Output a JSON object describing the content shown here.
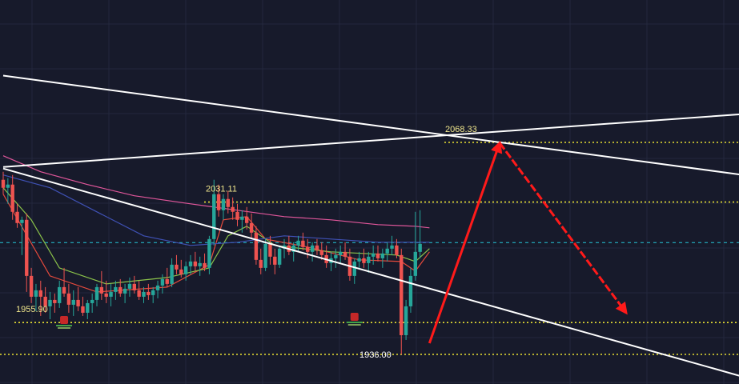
{
  "chart_data": {
    "type": "candlestick",
    "grid": true,
    "background": "#171a2b",
    "ylim": [
      1926,
      2110
    ],
    "colors": {
      "up": "#26a69a",
      "down": "#ef5350",
      "level_line": "#e8e032",
      "level_text": "#f0e68c",
      "trendline": "#ffffff",
      "projection_arrow": "#ff1a1a",
      "ma_fast": "#e64a3c",
      "ma_mid": "#8bc34a",
      "ma_slow": "#3f51b5",
      "ma_long": "#e0569a",
      "current_price_line": "#26c6da"
    },
    "levels": [
      {
        "label": "2068.33",
        "value": 2068.33
      },
      {
        "label": "2031.11",
        "value": 2031.11
      },
      {
        "label": "1955.90",
        "value": 1955.9
      },
      {
        "label": "1936.00",
        "value": 1936.0
      }
    ],
    "current_price": 2005.8,
    "candles": [
      [
        2045,
        2050,
        2036,
        2040
      ],
      [
        2040,
        2046,
        2030,
        2042
      ],
      [
        2042,
        2048,
        2020,
        2025
      ],
      [
        2025,
        2030,
        2015,
        2018
      ],
      [
        2018,
        2022,
        1998,
        2020
      ],
      [
        2020,
        2024,
        1975,
        1985
      ],
      [
        1985,
        1990,
        1968,
        1972
      ],
      [
        1972,
        1980,
        1963,
        1976
      ],
      [
        1976,
        1982,
        1960,
        1972
      ],
      [
        1972,
        1978,
        1962,
        1966
      ],
      [
        1966,
        1975,
        1958,
        1970
      ],
      [
        1970,
        1974,
        1962,
        1968
      ],
      [
        1968,
        1982,
        1965,
        1978
      ],
      [
        1978,
        1990,
        1972,
        1974
      ],
      [
        1974,
        1980,
        1962,
        1967
      ],
      [
        1967,
        1976,
        1960,
        1970
      ],
      [
        1970,
        1978,
        1963,
        1966
      ],
      [
        1966,
        1972,
        1960,
        1962
      ],
      [
        1962,
        1970,
        1958,
        1968
      ],
      [
        1968,
        1974,
        1962,
        1970
      ],
      [
        1970,
        1980,
        1966,
        1978
      ],
      [
        1978,
        1988,
        1970,
        1974
      ],
      [
        1974,
        1982,
        1968,
        1972
      ],
      [
        1972,
        1980,
        1966,
        1975
      ],
      [
        1975,
        1982,
        1970,
        1978
      ],
      [
        1978,
        1983,
        1972,
        1974
      ],
      [
        1974,
        1980,
        1968,
        1977
      ],
      [
        1977,
        1984,
        1972,
        1980
      ],
      [
        1980,
        1985,
        1974,
        1976
      ],
      [
        1976,
        1982,
        1970,
        1972
      ],
      [
        1972,
        1978,
        1968,
        1975
      ],
      [
        1975,
        1980,
        1970,
        1973
      ],
      [
        1973,
        1978,
        1968,
        1976
      ],
      [
        1976,
        1982,
        1971,
        1979
      ],
      [
        1979,
        1986,
        1974,
        1983
      ],
      [
        1983,
        1990,
        1978,
        1980
      ],
      [
        1980,
        1996,
        1978,
        1992
      ],
      [
        1992,
        1998,
        1986,
        1989
      ],
      [
        1989,
        1995,
        1984,
        1986
      ],
      [
        1986,
        1994,
        1982,
        1991
      ],
      [
        1991,
        1998,
        1986,
        1994
      ],
      [
        1994,
        2000,
        1988,
        1991
      ],
      [
        1991,
        1997,
        1985,
        1993
      ],
      [
        1993,
        1999,
        1988,
        1990
      ],
      [
        1990,
        2010,
        1986,
        2008
      ],
      [
        2008,
        2045,
        2004,
        2036
      ],
      [
        2036,
        2042,
        2022,
        2026
      ],
      [
        2026,
        2036,
        2020,
        2033
      ],
      [
        2033,
        2038,
        2024,
        2028
      ],
      [
        2028,
        2034,
        2020,
        2025
      ],
      [
        2025,
        2030,
        2016,
        2020
      ],
      [
        2020,
        2026,
        2012,
        2022
      ],
      [
        2022,
        2028,
        2014,
        2018
      ],
      [
        2018,
        2024,
        2008,
        2012
      ],
      [
        2012,
        2016,
        1992,
        1995
      ],
      [
        1995,
        2002,
        1986,
        1990
      ],
      [
        1990,
        2008,
        1988,
        2005
      ],
      [
        2005,
        2010,
        1992,
        1997
      ],
      [
        1997,
        2002,
        1986,
        1992
      ],
      [
        1992,
        2004,
        1990,
        2002
      ],
      [
        2002,
        2008,
        1996,
        2004
      ],
      [
        2004,
        2010,
        1998,
        2000
      ],
      [
        2000,
        2006,
        1994,
        2004
      ],
      [
        2004,
        2010,
        2000,
        2007
      ],
      [
        2007,
        2012,
        2001,
        2003
      ],
      [
        2003,
        2008,
        1996,
        2000
      ],
      [
        2000,
        2006,
        1994,
        2004
      ],
      [
        2004,
        2008,
        1998,
        2001
      ],
      [
        2001,
        2006,
        1995,
        1998
      ],
      [
        1998,
        2004,
        1990,
        1993
      ],
      [
        1993,
        2000,
        1988,
        1996
      ],
      [
        1996,
        2002,
        1990,
        1998
      ],
      [
        1998,
        2004,
        1993,
        2000
      ],
      [
        2000,
        2006,
        1995,
        1997
      ],
      [
        1997,
        2002,
        1982,
        1985
      ],
      [
        1985,
        1996,
        1980,
        1994
      ],
      [
        1994,
        2000,
        1990,
        1996
      ],
      [
        1996,
        2002,
        1990,
        1993
      ],
      [
        1993,
        2000,
        1987,
        1997
      ],
      [
        1997,
        2004,
        1992,
        1999
      ],
      [
        1999,
        2004,
        1994,
        1996
      ],
      [
        1996,
        2002,
        1990,
        1999
      ],
      [
        1999,
        2006,
        1994,
        2002
      ],
      [
        2002,
        2010,
        1998,
        2004
      ],
      [
        2004,
        2008,
        1996,
        1998
      ],
      [
        1998,
        2002,
        1936,
        1948
      ],
      [
        1948,
        1970,
        1945,
        1966
      ],
      [
        1966,
        1990,
        1962,
        1985
      ],
      [
        1985,
        2025,
        1982,
        2000
      ],
      [
        2000,
        2026,
        1996,
        2005
      ]
    ],
    "moving_averages": [
      {
        "name": "MA fast",
        "color": "#e64a3c",
        "points": [
          [
            0,
            2036
          ],
          [
            10,
            1985
          ],
          [
            20,
            1975
          ],
          [
            35,
            1978
          ],
          [
            44,
            1992
          ],
          [
            47,
            2020
          ],
          [
            52,
            2022
          ],
          [
            56,
            2008
          ],
          [
            65,
            2003
          ],
          [
            76,
            1995
          ],
          [
            85,
            1994
          ],
          [
            88,
            1988
          ],
          [
            91,
            2000
          ]
        ]
      },
      {
        "name": "MA mid",
        "color": "#8bc34a",
        "points": [
          [
            0,
            2040
          ],
          [
            6,
            2020
          ],
          [
            12,
            1990
          ],
          [
            22,
            1980
          ],
          [
            35,
            1984
          ],
          [
            44,
            1990
          ],
          [
            48,
            2010
          ],
          [
            52,
            2016
          ],
          [
            58,
            2004
          ],
          [
            70,
            2000
          ],
          [
            84,
            1998
          ],
          [
            88,
            1994
          ],
          [
            91,
            2002
          ]
        ]
      },
      {
        "name": "MA slow",
        "color": "#3f51b5",
        "points": [
          [
            0,
            2048
          ],
          [
            10,
            2040
          ],
          [
            20,
            2025
          ],
          [
            30,
            2010
          ],
          [
            40,
            2004
          ],
          [
            50,
            2006
          ],
          [
            60,
            2010
          ],
          [
            70,
            2008
          ],
          [
            80,
            2006
          ],
          [
            88,
            2006
          ],
          [
            91,
            2006
          ]
        ]
      },
      {
        "name": "MA long",
        "color": "#e0569a",
        "points": [
          [
            0,
            2060
          ],
          [
            8,
            2050
          ],
          [
            18,
            2042
          ],
          [
            28,
            2035
          ],
          [
            40,
            2030
          ],
          [
            50,
            2026
          ],
          [
            60,
            2022
          ],
          [
            70,
            2020
          ],
          [
            80,
            2017
          ],
          [
            88,
            2016
          ],
          [
            91,
            2015
          ]
        ]
      }
    ],
    "trendlines": [
      {
        "name": "upper falling",
        "points": [
          [
            0,
            2110
          ],
          [
            158,
            2048
          ]
        ]
      },
      {
        "name": "rising",
        "points": [
          [
            0,
            2053
          ],
          [
            158,
            2086
          ]
        ]
      },
      {
        "name": "lower falling",
        "points": [
          [
            0,
            2052
          ],
          [
            158,
            1922
          ]
        ]
      }
    ],
    "projection": [
      {
        "from": [
          91,
          1943
        ],
        "to": [
          106,
          2068
        ]
      },
      {
        "from": [
          106,
          2068
        ],
        "to": [
          133,
          1962
        ]
      }
    ]
  }
}
